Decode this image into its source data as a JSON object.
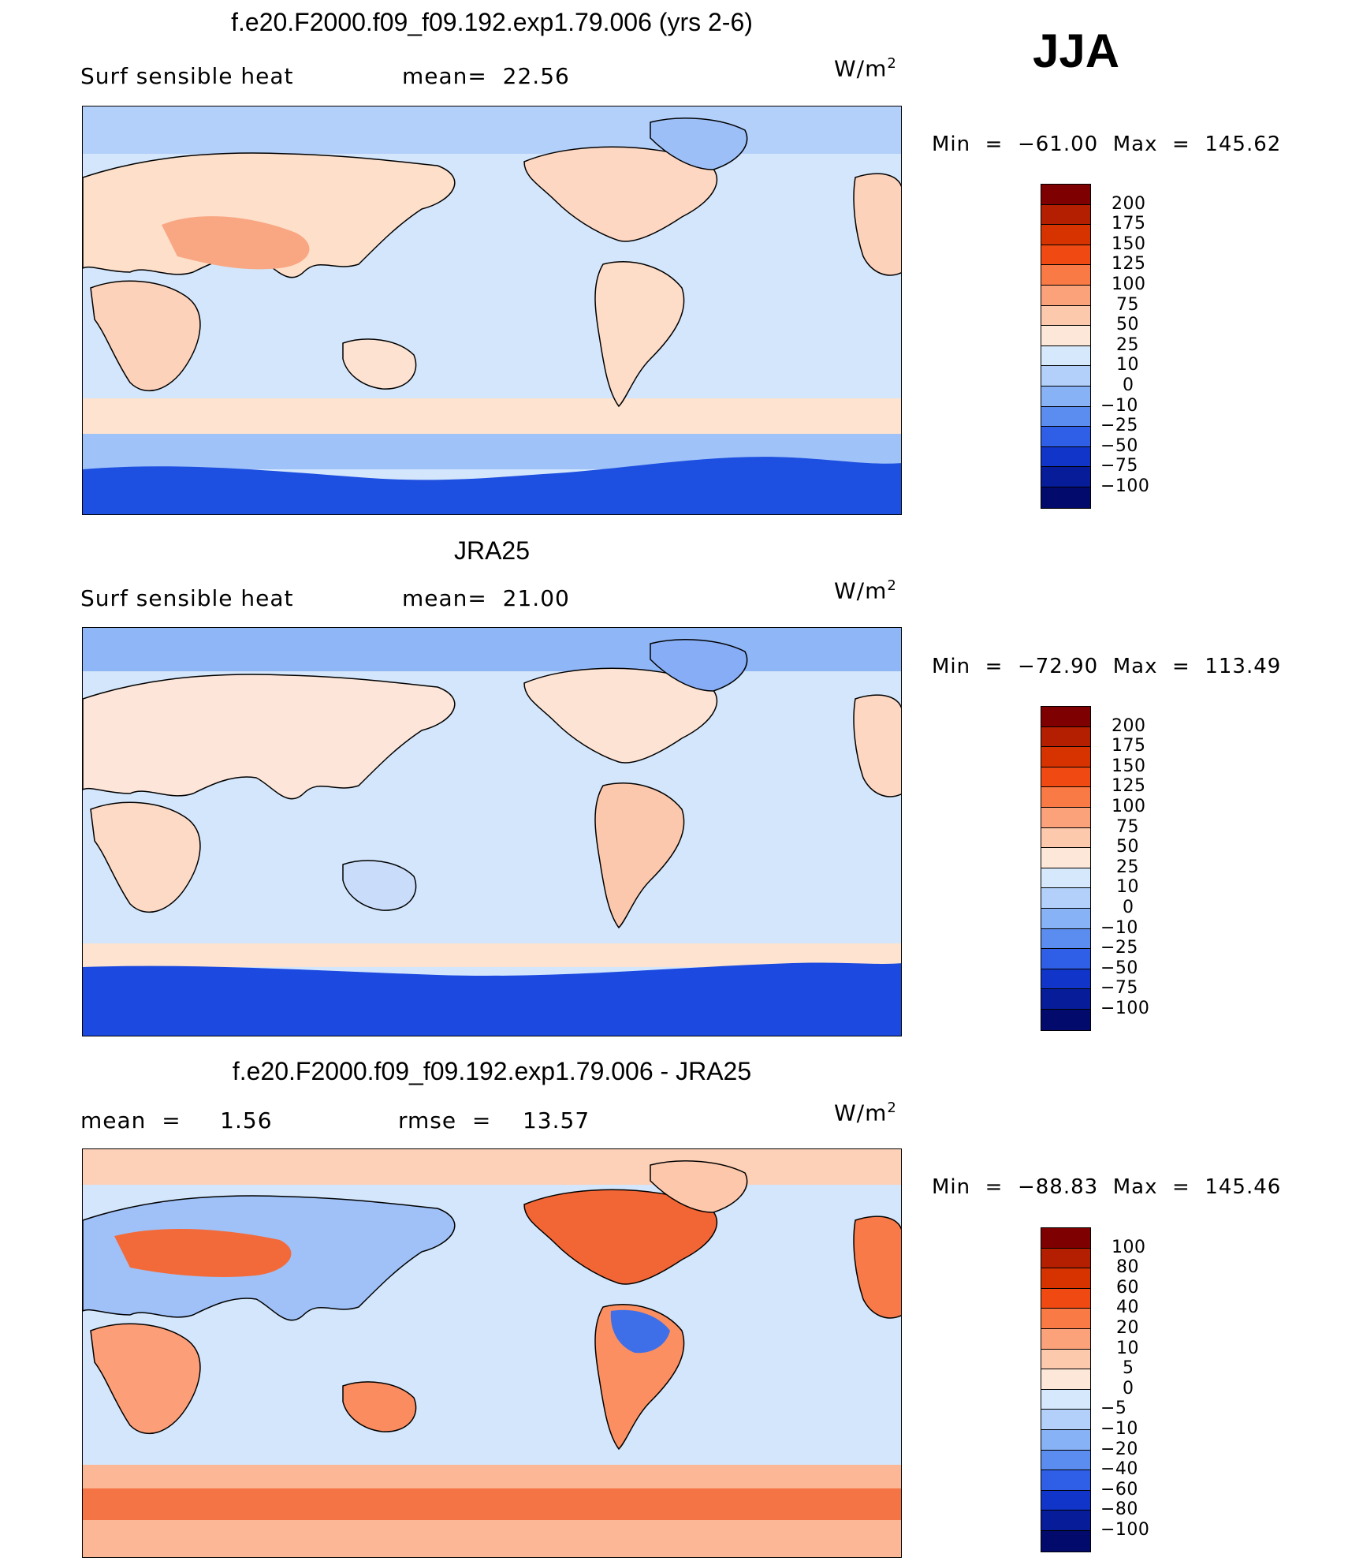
{
  "season": "JJA",
  "units": {
    "base": "W/m",
    "exp": "2"
  },
  "colors": {
    "abs_scale": [
      "#e9f0fb"
    ],
    "land_outline": "#000000"
  },
  "panels": [
    {
      "id": "model",
      "title": "f.e20.F2000.f09_f09.192.exp1.79.006 (yrs 2-6)",
      "left_text": "Surf sensible heat",
      "middle_text": "mean=  22.56",
      "min_max": "Min  =  −61.00  Max  =  145.62",
      "colorbar_labels": [
        "200",
        "175",
        "150",
        "125",
        "100",
        "75",
        "50",
        "25",
        "10",
        "0",
        "−10",
        "−25",
        "−50",
        "−75",
        "−100"
      ],
      "colorbar_colors": [
        "#7f0000",
        "#b31f00",
        "#d63300",
        "#f04a12",
        "#fa7a45",
        "#fca27a",
        "#fdc9ad",
        "#fde7d8",
        "#d6e8fb",
        "#b2d0fa",
        "#88b2f6",
        "#5b8cf0",
        "#2f5fe6",
        "#1035c8",
        "#061c98",
        "#020a6b"
      ]
    },
    {
      "id": "obs",
      "title": "JRA25",
      "left_text": "Surf sensible heat",
      "middle_text": "mean=  21.00",
      "min_max": "Min  =  −72.90  Max  =  113.49",
      "colorbar_labels": [
        "200",
        "175",
        "150",
        "125",
        "100",
        "75",
        "50",
        "25",
        "10",
        "0",
        "−10",
        "−25",
        "−50",
        "−75",
        "−100"
      ],
      "colorbar_colors": [
        "#7f0000",
        "#b31f00",
        "#d63300",
        "#f04a12",
        "#fa7a45",
        "#fca27a",
        "#fdc9ad",
        "#fde7d8",
        "#d6e8fb",
        "#b2d0fa",
        "#88b2f6",
        "#5b8cf0",
        "#2f5fe6",
        "#1035c8",
        "#061c98",
        "#020a6b"
      ]
    },
    {
      "id": "diff",
      "title": "f.e20.F2000.f09_f09.192.exp1.79.006 - JRA25",
      "left_text": "mean  =     1.56",
      "middle_text": "rmse  =    13.57",
      "min_max": "Min  =  −88.83  Max  =  145.46",
      "colorbar_labels": [
        "100",
        "80",
        "60",
        "40",
        "20",
        "10",
        "5",
        "0",
        "−5",
        "−10",
        "−20",
        "−40",
        "−60",
        "−80",
        "−100"
      ],
      "colorbar_colors": [
        "#7f0000",
        "#b31f00",
        "#d63300",
        "#f04a12",
        "#fa7a45",
        "#fca27a",
        "#fdc9ad",
        "#fde7d8",
        "#d6e8fb",
        "#b2d0fa",
        "#88b2f6",
        "#5b8cf0",
        "#2f5fe6",
        "#1035c8",
        "#061c98",
        "#020a6b"
      ]
    }
  ]
}
